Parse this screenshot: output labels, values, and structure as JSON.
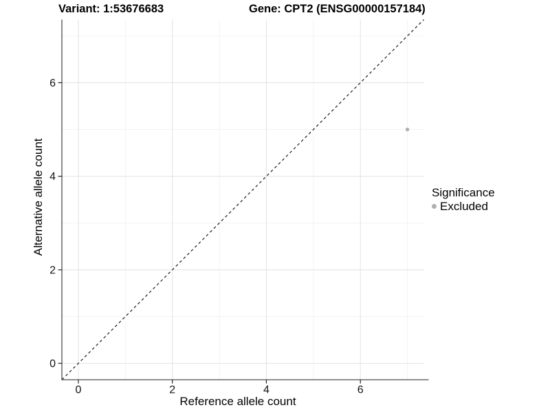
{
  "titles": {
    "variant": "Variant: 1:53676683",
    "gene": "Gene: CPT2 (ENSG00000157184)"
  },
  "legend": {
    "title": "Significance",
    "items": [
      {
        "label": "Excluded",
        "color": "#b0b0b0"
      }
    ]
  },
  "chart_data": {
    "type": "scatter",
    "title_left": "Variant: 1:53676683",
    "title_right": "Gene: CPT2 (ENSG00000157184)",
    "xlabel": "Reference allele count",
    "ylabel": "Alternative allele count",
    "xlim": [
      -0.35,
      7.35
    ],
    "ylim": [
      -0.35,
      7.35
    ],
    "x_ticks": [
      0,
      2,
      4,
      6
    ],
    "y_ticks": [
      0,
      2,
      4,
      6
    ],
    "x_grid_major": [
      0,
      2,
      4,
      6
    ],
    "x_grid_minor": [
      1,
      3,
      5,
      7
    ],
    "y_grid_major": [
      0,
      2,
      4,
      6
    ],
    "y_grid_minor": [
      1,
      3,
      5,
      7
    ],
    "grid": "on",
    "legend_position": "right",
    "series": [
      {
        "name": "Excluded",
        "color": "#b0b0b0",
        "points": [
          {
            "x": 7,
            "y": 5
          }
        ]
      }
    ],
    "reference_line": {
      "kind": "identity",
      "style": "dashed",
      "from": [
        -0.35,
        -0.35
      ],
      "to": [
        7.35,
        7.35
      ]
    },
    "colors": {
      "grid_major": "#e4e4e4",
      "grid_minor": "#f0f0f0",
      "axis_line": "#4a4a4c",
      "tick_mark": "#222222",
      "tick_label": "#111111",
      "dashed_line": "#1a1a1a",
      "point": "#b0b0b0"
    }
  }
}
